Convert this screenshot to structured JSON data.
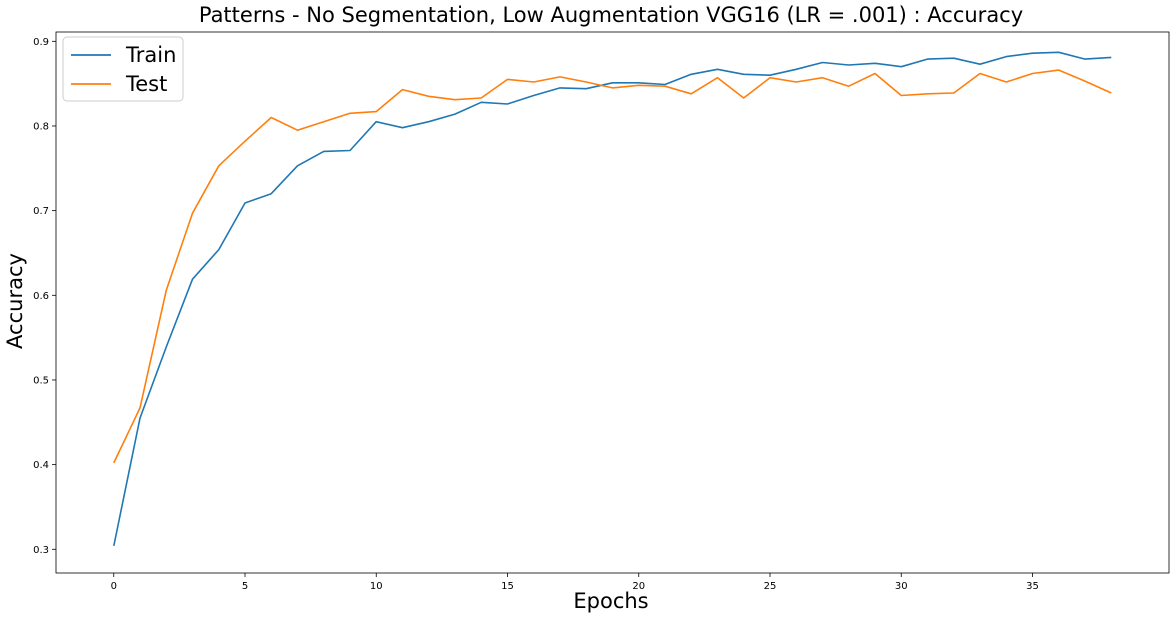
{
  "chart_data": {
    "type": "line",
    "title": "Patterns - No Segmentation, Low Augmentation VGG16 (LR = .001) : Accuracy",
    "xlabel": "Epochs",
    "ylabel": "Accuracy",
    "xlim": [
      -2.2,
      40.2
    ],
    "ylim": [
      0.272,
      0.911
    ],
    "xticks": [
      0,
      5,
      10,
      15,
      20,
      25,
      30,
      35
    ],
    "yticks": [
      0.3,
      0.4,
      0.5,
      0.6,
      0.7,
      0.8,
      0.9
    ],
    "grid": false,
    "legend_position": "top-left",
    "x": [
      0,
      1,
      2,
      3,
      4,
      5,
      6,
      7,
      8,
      9,
      10,
      11,
      12,
      13,
      14,
      15,
      16,
      17,
      18,
      19,
      20,
      21,
      22,
      23,
      24,
      25,
      26,
      27,
      28,
      29,
      30,
      31,
      32,
      33,
      34,
      35,
      36,
      37,
      38
    ],
    "series": [
      {
        "name": "Train",
        "color": "#1f77b4",
        "values": [
          0.304,
          0.455,
          0.539,
          0.619,
          0.654,
          0.709,
          0.72,
          0.753,
          0.77,
          0.771,
          0.805,
          0.798,
          0.805,
          0.814,
          0.828,
          0.826,
          0.836,
          0.845,
          0.844,
          0.851,
          0.851,
          0.849,
          0.861,
          0.867,
          0.861,
          0.86,
          0.867,
          0.875,
          0.872,
          0.874,
          0.87,
          0.879,
          0.88,
          0.873,
          0.882,
          0.886,
          0.887,
          0.879,
          0.881
        ]
      },
      {
        "name": "Test",
        "color": "#ff7f0e",
        "values": [
          0.402,
          0.467,
          0.606,
          0.697,
          0.753,
          0.782,
          0.81,
          0.795,
          0.805,
          0.815,
          0.817,
          0.843,
          0.835,
          0.831,
          0.833,
          0.855,
          0.852,
          0.858,
          0.852,
          0.845,
          0.848,
          0.847,
          0.838,
          0.857,
          0.833,
          0.857,
          0.852,
          0.857,
          0.847,
          0.862,
          0.836,
          0.838,
          0.839,
          0.862,
          0.852,
          0.862,
          0.866,
          0.853,
          0.839
        ]
      }
    ]
  }
}
